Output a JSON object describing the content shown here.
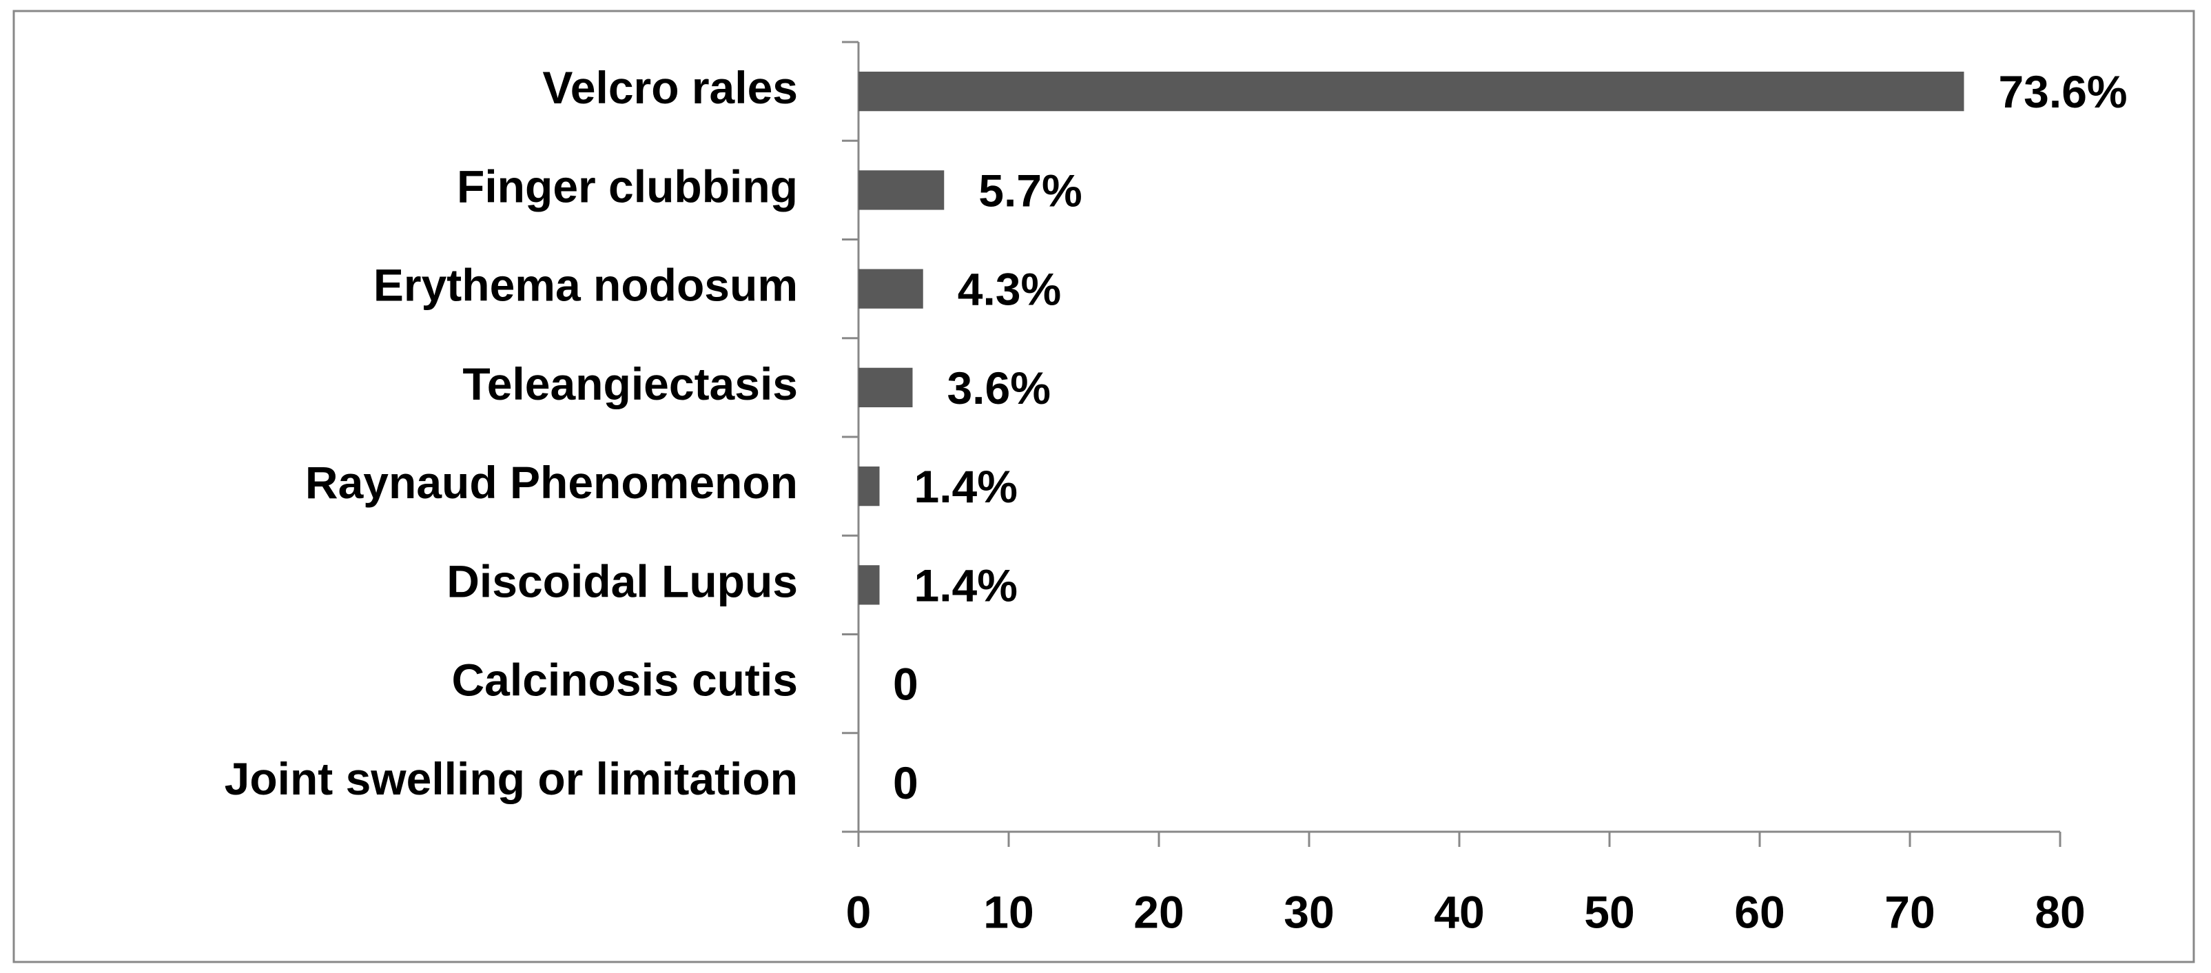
{
  "chart_data": {
    "type": "bar",
    "orientation": "horizontal",
    "categories": [
      "Velcro rales",
      "Finger clubbing",
      "Erythema nodosum",
      "Teleangiectasis",
      "Raynaud Phenomenon",
      "Discoidal Lupus",
      "Calcinosis cutis",
      "Joint swelling or limitation"
    ],
    "values": [
      73.6,
      5.7,
      4.3,
      3.6,
      1.4,
      1.4,
      0,
      0
    ],
    "value_labels": [
      "73.6%",
      "5.7%",
      "4.3%",
      "3.6%",
      "1.4%",
      "1.4%",
      "0",
      "0"
    ],
    "color": "#595959",
    "xlim": [
      0,
      80
    ],
    "xticks": [
      0,
      10,
      20,
      30,
      40,
      50,
      60,
      70,
      80
    ],
    "grid": false
  }
}
